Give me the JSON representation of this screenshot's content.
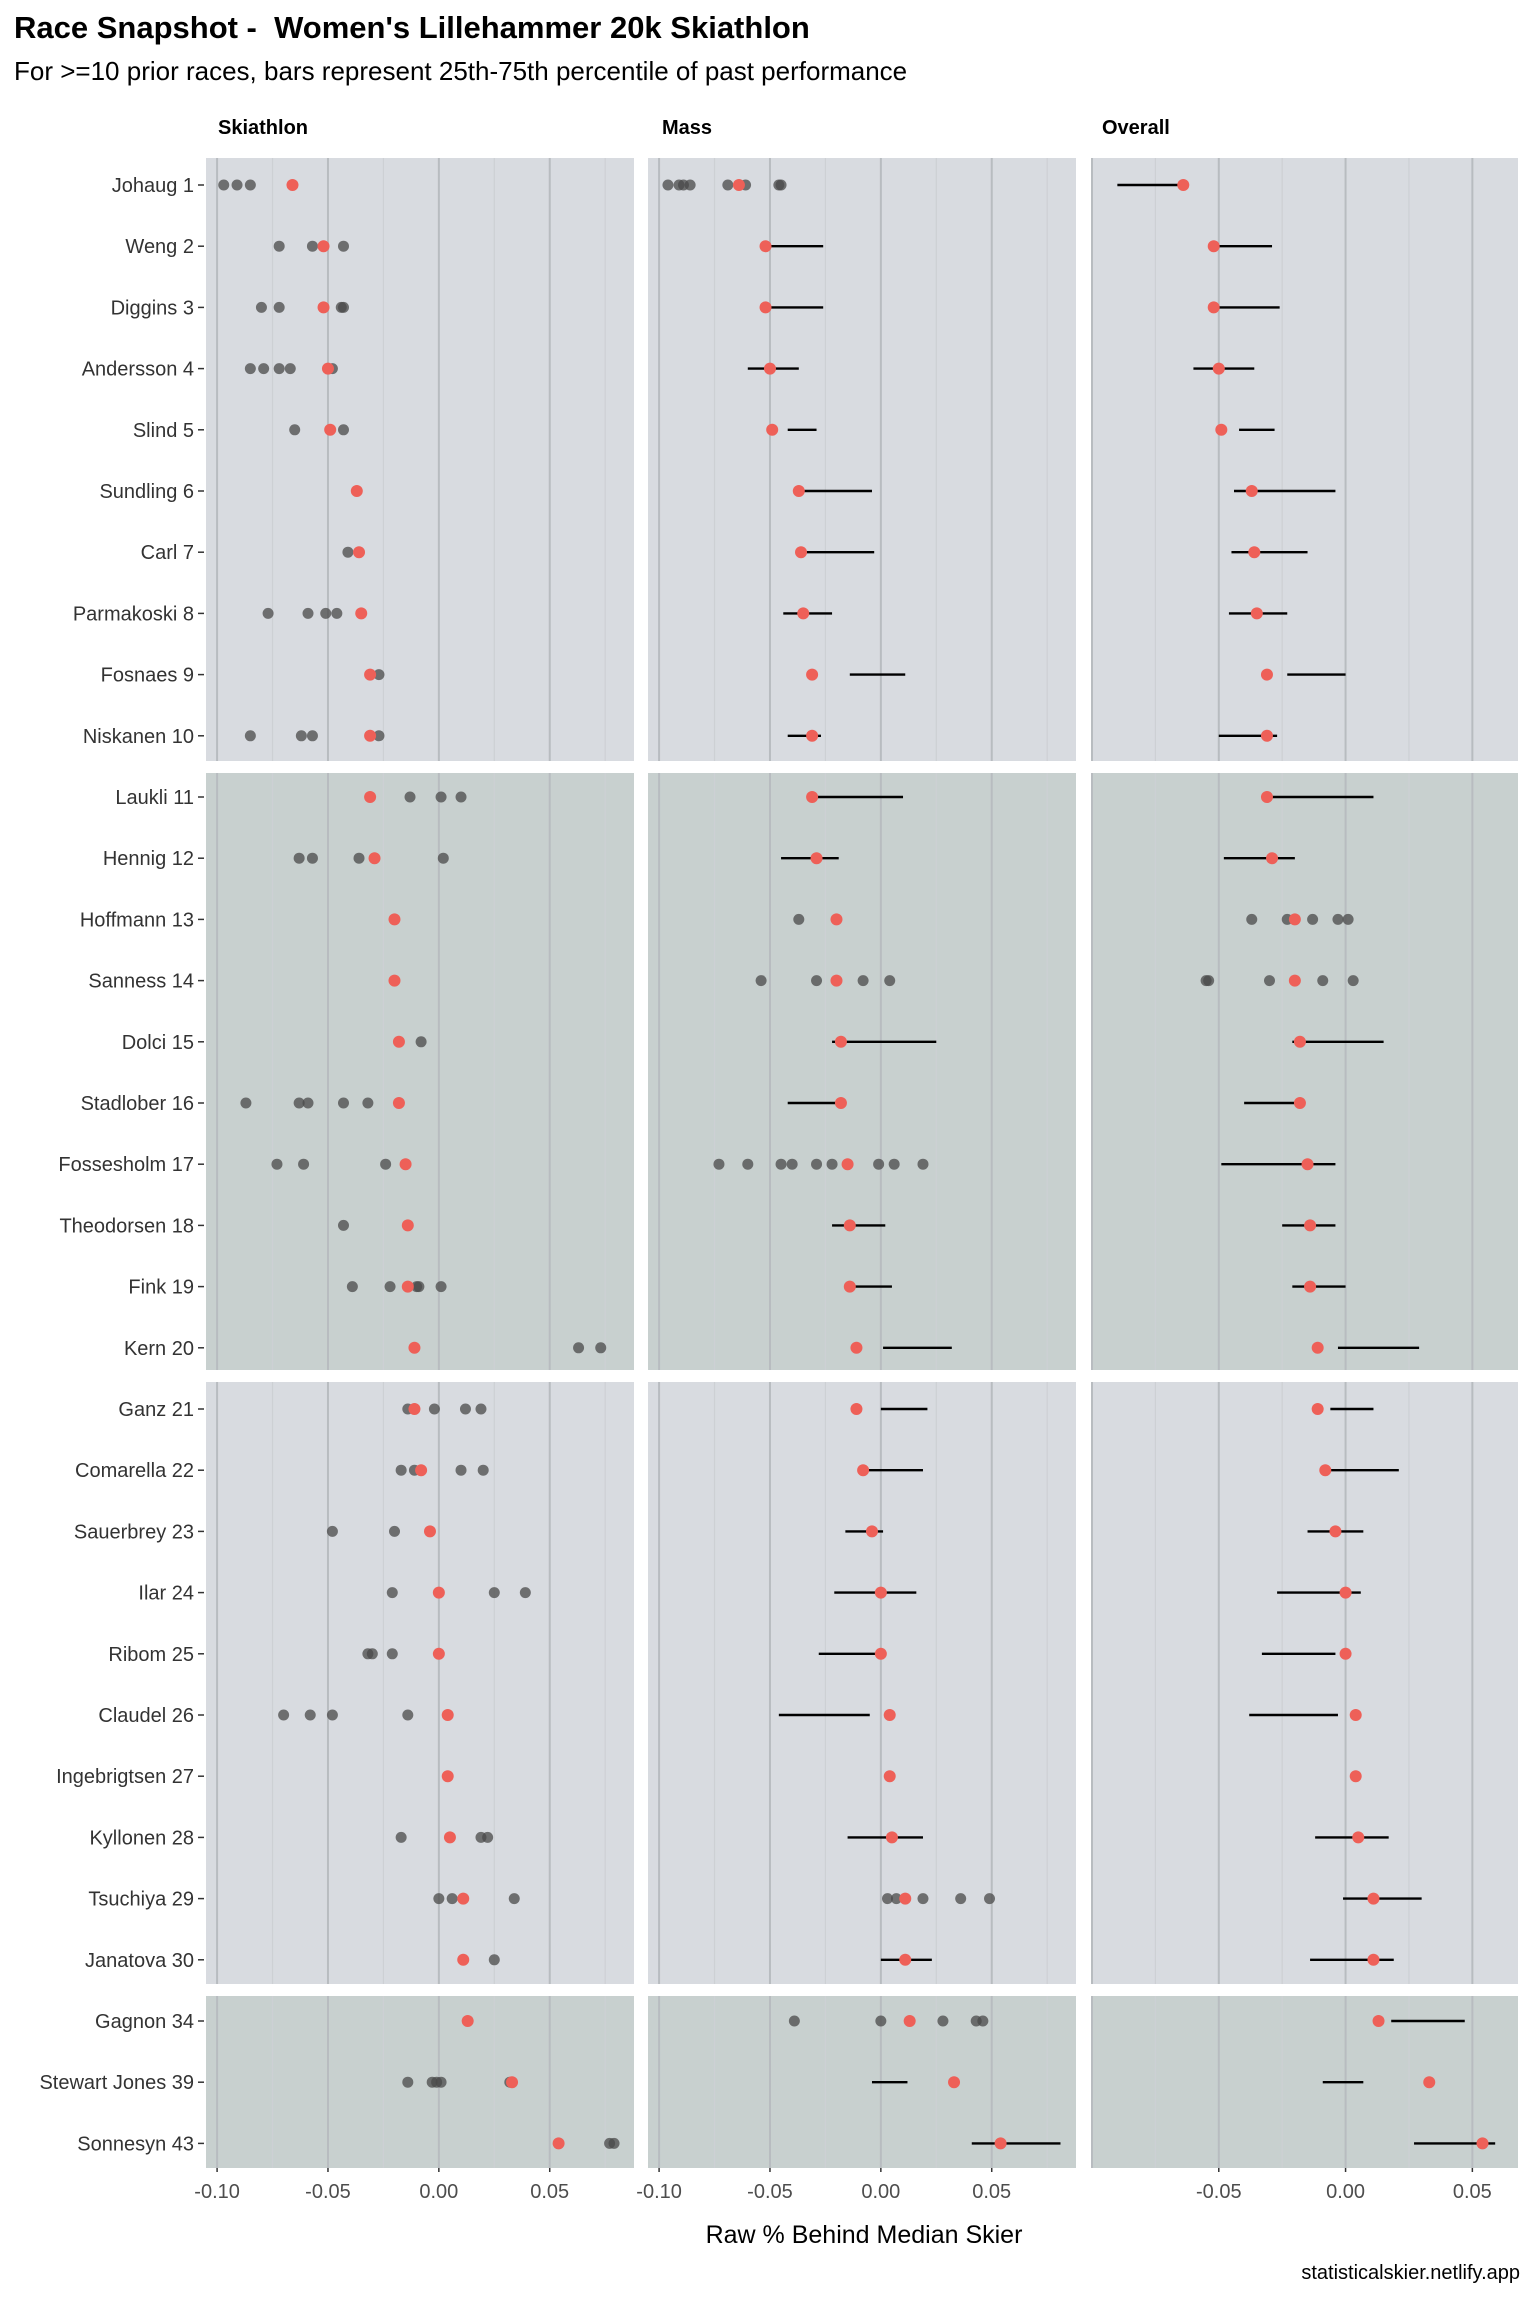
{
  "title": "Race Snapshot -  Women's Lillehammer 20k Skiathlon",
  "subtitle": "For >=10 prior races, bars represent 25th-75th percentile of past performance",
  "caption": "statisticalskier.netlify.app",
  "colors": {
    "panel_light": "#d8dbe0",
    "panel_dark": "#c8d0cf",
    "gridline": "#bfc3c7",
    "point": "#4a4a4a",
    "highlight": "#ee6058",
    "bar": "#000000",
    "text": "#333333"
  },
  "chart_data": {
    "type": "scatter",
    "xlabel": "Raw % Behind Median Skier",
    "facets": [
      {
        "name": "Skiathlon",
        "xlim": [
          -0.105,
          0.088
        ],
        "ticks": [
          -0.1,
          -0.05,
          0.0,
          0.05
        ],
        "tick_labels": [
          "-0.10",
          "-0.05",
          "0.00",
          "0.05"
        ]
      },
      {
        "name": "Mass",
        "xlim": [
          -0.105,
          0.088
        ],
        "ticks": [
          -0.1,
          -0.05,
          0.0,
          0.05
        ],
        "tick_labels": [
          "-0.10",
          "-0.05",
          "0.00",
          "0.05"
        ]
      },
      {
        "name": "Overall",
        "xlim": [
          -0.1,
          0.068
        ],
        "ticks": [
          -0.05,
          0.0,
          0.05
        ],
        "tick_labels": [
          "-0.05",
          "0.00",
          "0.05"
        ]
      }
    ],
    "groups": [
      [
        0,
        9
      ],
      [
        10,
        19
      ],
      [
        20,
        29
      ],
      [
        30,
        32
      ]
    ],
    "skiers": [
      {
        "label": "Johaug 1",
        "current": [
          -0.066,
          -0.064,
          -0.064
        ],
        "skiathlon": {
          "points": [
            -0.097,
            -0.091,
            -0.085
          ]
        },
        "mass": {
          "points": [
            -0.096,
            -0.091,
            -0.089,
            -0.086,
            -0.069,
            -0.061,
            -0.046,
            -0.045
          ]
        },
        "overall": {
          "range": [
            -0.09,
            -0.066
          ]
        }
      },
      {
        "label": "Weng 2",
        "current": [
          -0.052,
          -0.052,
          -0.052
        ],
        "skiathlon": {
          "points": [
            -0.072,
            -0.057,
            -0.043
          ]
        },
        "mass": {
          "range": [
            -0.052,
            -0.026
          ]
        },
        "overall": {
          "range": [
            -0.052,
            -0.029
          ]
        }
      },
      {
        "label": "Diggins 3",
        "current": [
          -0.052,
          -0.052,
          -0.052
        ],
        "skiathlon": {
          "points": [
            -0.08,
            -0.072,
            -0.044,
            -0.043
          ]
        },
        "mass": {
          "range": [
            -0.052,
            -0.026
          ]
        },
        "overall": {
          "range": [
            -0.052,
            -0.026
          ]
        }
      },
      {
        "label": "Andersson 4",
        "current": [
          -0.05,
          -0.05,
          -0.05
        ],
        "skiathlon": {
          "points": [
            -0.085,
            -0.079,
            -0.072,
            -0.067,
            -0.048
          ]
        },
        "mass": {
          "range": [
            -0.06,
            -0.037
          ]
        },
        "overall": {
          "range": [
            -0.06,
            -0.036
          ]
        }
      },
      {
        "label": "Slind 5",
        "current": [
          -0.049,
          -0.049,
          -0.049
        ],
        "skiathlon": {
          "points": [
            -0.065,
            -0.043
          ]
        },
        "mass": {
          "range": [
            -0.042,
            -0.029
          ]
        },
        "overall": {
          "range": [
            -0.042,
            -0.028
          ]
        }
      },
      {
        "label": "Sundling 6",
        "current": [
          -0.037,
          -0.037,
          -0.037
        ],
        "skiathlon": {
          "points": []
        },
        "mass": {
          "range": [
            -0.037,
            -0.004
          ]
        },
        "overall": {
          "range": [
            -0.044,
            -0.004
          ]
        }
      },
      {
        "label": "Carl 7",
        "current": [
          -0.036,
          -0.036,
          -0.036
        ],
        "skiathlon": {
          "points": [
            -0.041
          ]
        },
        "mass": {
          "range": [
            -0.036,
            -0.003
          ]
        },
        "overall": {
          "range": [
            -0.045,
            -0.015
          ]
        }
      },
      {
        "label": "Parmakoski 8",
        "current": [
          -0.035,
          -0.035,
          -0.035
        ],
        "skiathlon": {
          "points": [
            -0.077,
            -0.059,
            -0.051,
            -0.046
          ]
        },
        "mass": {
          "range": [
            -0.044,
            -0.022
          ]
        },
        "overall": {
          "range": [
            -0.046,
            -0.023
          ]
        }
      },
      {
        "label": "Fosnaes 9",
        "current": [
          -0.031,
          -0.031,
          -0.031
        ],
        "skiathlon": {
          "points": [
            -0.027
          ]
        },
        "mass": {
          "range": [
            -0.014,
            0.011
          ]
        },
        "overall": {
          "range": [
            -0.023,
            0.0
          ]
        }
      },
      {
        "label": "Niskanen 10",
        "current": [
          -0.031,
          -0.031,
          -0.031
        ],
        "skiathlon": {
          "points": [
            -0.085,
            -0.062,
            -0.057,
            -0.027
          ]
        },
        "mass": {
          "range": [
            -0.042,
            -0.027
          ]
        },
        "overall": {
          "range": [
            -0.05,
            -0.027
          ]
        }
      },
      {
        "label": "Laukli 11",
        "current": [
          -0.031,
          -0.031,
          -0.031
        ],
        "skiathlon": {
          "points": [
            -0.013,
            0.001,
            0.01
          ]
        },
        "mass": {
          "range": [
            -0.031,
            0.01
          ]
        },
        "overall": {
          "range": [
            -0.031,
            0.011
          ]
        }
      },
      {
        "label": "Hennig 12",
        "current": [
          -0.029,
          -0.029,
          -0.029
        ],
        "skiathlon": {
          "points": [
            -0.063,
            -0.057,
            -0.036,
            0.002
          ]
        },
        "mass": {
          "range": [
            -0.045,
            -0.019
          ]
        },
        "overall": {
          "range": [
            -0.048,
            -0.02
          ]
        }
      },
      {
        "label": "Hoffmann 13",
        "current": [
          -0.02,
          -0.02,
          -0.02
        ],
        "skiathlon": {
          "points": []
        },
        "mass": {
          "points": [
            -0.037
          ]
        },
        "overall": {
          "points": [
            -0.037,
            -0.023,
            -0.013,
            -0.003,
            0.001
          ]
        }
      },
      {
        "label": "Sanness 14",
        "current": [
          -0.02,
          -0.02,
          -0.02
        ],
        "skiathlon": {
          "points": []
        },
        "mass": {
          "points": [
            -0.054,
            -0.029,
            -0.008,
            0.004
          ]
        },
        "overall": {
          "points": [
            -0.055,
            -0.054,
            -0.03,
            -0.009,
            0.003
          ]
        }
      },
      {
        "label": "Dolci 15",
        "current": [
          -0.018,
          -0.018,
          -0.018
        ],
        "skiathlon": {
          "points": [
            -0.008
          ]
        },
        "mass": {
          "range": [
            -0.022,
            0.025
          ]
        },
        "overall": {
          "range": [
            -0.021,
            0.015
          ]
        }
      },
      {
        "label": "Stadlober 16",
        "current": [
          -0.018,
          -0.018,
          -0.018
        ],
        "skiathlon": {
          "points": [
            -0.087,
            -0.063,
            -0.059,
            -0.043,
            -0.032
          ]
        },
        "mass": {
          "range": [
            -0.042,
            -0.018
          ]
        },
        "overall": {
          "range": [
            -0.04,
            -0.018
          ]
        }
      },
      {
        "label": "Fossesholm 17",
        "current": [
          -0.015,
          -0.015,
          -0.015
        ],
        "skiathlon": {
          "points": [
            -0.073,
            -0.061,
            -0.024
          ]
        },
        "mass": {
          "points": [
            -0.073,
            -0.06,
            -0.045,
            -0.04,
            -0.029,
            -0.022,
            -0.001,
            0.006,
            0.019
          ]
        },
        "overall": {
          "range": [
            -0.049,
            -0.004
          ]
        }
      },
      {
        "label": "Theodorsen 18",
        "current": [
          -0.014,
          -0.014,
          -0.014
        ],
        "skiathlon": {
          "points": [
            -0.043
          ]
        },
        "mass": {
          "range": [
            -0.022,
            0.002
          ]
        },
        "overall": {
          "range": [
            -0.025,
            -0.004
          ]
        }
      },
      {
        "label": "Fink 19",
        "current": [
          -0.014,
          -0.014,
          -0.014
        ],
        "skiathlon": {
          "points": [
            -0.039,
            -0.022,
            -0.01,
            -0.009,
            0.001
          ]
        },
        "mass": {
          "range": [
            -0.014,
            0.005
          ]
        },
        "overall": {
          "range": [
            -0.021,
            0.0
          ]
        }
      },
      {
        "label": "Kern 20",
        "current": [
          -0.011,
          -0.011,
          -0.011
        ],
        "skiathlon": {
          "points": [
            0.063,
            0.073
          ]
        },
        "mass": {
          "range": [
            0.001,
            0.032
          ]
        },
        "overall": {
          "range": [
            -0.003,
            0.029
          ]
        }
      },
      {
        "label": "Ganz 21",
        "current": [
          -0.011,
          -0.011,
          -0.011
        ],
        "skiathlon": {
          "points": [
            -0.014,
            -0.002,
            0.012,
            0.019
          ]
        },
        "mass": {
          "range": [
            0.0,
            0.021
          ]
        },
        "overall": {
          "range": [
            -0.006,
            0.011
          ]
        }
      },
      {
        "label": "Comarella 22",
        "current": [
          -0.008,
          -0.008,
          -0.008
        ],
        "skiathlon": {
          "points": [
            -0.017,
            -0.011,
            0.01,
            0.02
          ]
        },
        "mass": {
          "range": [
            -0.008,
            0.019
          ]
        },
        "overall": {
          "range": [
            -0.008,
            0.021
          ]
        }
      },
      {
        "label": "Sauerbrey 23",
        "current": [
          -0.004,
          -0.004,
          -0.004
        ],
        "skiathlon": {
          "points": [
            -0.048,
            -0.02
          ]
        },
        "mass": {
          "range": [
            -0.016,
            0.001
          ]
        },
        "overall": {
          "range": [
            -0.015,
            0.007
          ]
        }
      },
      {
        "label": "Ilar 24",
        "current": [
          0.0,
          0.0,
          0.0
        ],
        "skiathlon": {
          "points": [
            -0.021,
            0.025,
            0.039
          ]
        },
        "mass": {
          "range": [
            -0.021,
            0.016
          ]
        },
        "overall": {
          "range": [
            -0.027,
            0.006
          ]
        }
      },
      {
        "label": "Ribom 25",
        "current": [
          0.0,
          0.0,
          0.0
        ],
        "skiathlon": {
          "points": [
            -0.032,
            -0.03,
            -0.021
          ]
        },
        "mass": {
          "range": [
            -0.028,
            0.0
          ]
        },
        "overall": {
          "range": [
            -0.033,
            -0.004
          ]
        }
      },
      {
        "label": "Claudel 26",
        "current": [
          0.004,
          0.004,
          0.004
        ],
        "skiathlon": {
          "points": [
            -0.07,
            -0.058,
            -0.048,
            -0.014
          ]
        },
        "mass": {
          "range": [
            -0.046,
            -0.005
          ]
        },
        "overall": {
          "range": [
            -0.038,
            -0.003
          ]
        }
      },
      {
        "label": "Ingebrigtsen 27",
        "current": [
          0.004,
          0.004,
          0.004
        ],
        "skiathlon": {
          "points": []
        },
        "mass": {
          "points": []
        },
        "overall": {
          "points": []
        }
      },
      {
        "label": "Kyllonen 28",
        "current": [
          0.005,
          0.005,
          0.005
        ],
        "skiathlon": {
          "points": [
            -0.017,
            0.019,
            0.022
          ]
        },
        "mass": {
          "range": [
            -0.015,
            0.019
          ]
        },
        "overall": {
          "range": [
            -0.012,
            0.017
          ]
        }
      },
      {
        "label": "Tsuchiya 29",
        "current": [
          0.011,
          0.011,
          0.011
        ],
        "skiathlon": {
          "points": [
            0.0,
            0.006,
            0.034
          ]
        },
        "mass": {
          "points": [
            0.003,
            0.007,
            0.019,
            0.036,
            0.049
          ]
        },
        "overall": {
          "range": [
            -0.001,
            0.03
          ]
        }
      },
      {
        "label": "Janatova 30",
        "current": [
          0.011,
          0.011,
          0.011
        ],
        "skiathlon": {
          "points": [
            0.025
          ]
        },
        "mass": {
          "range": [
            0.0,
            0.023
          ]
        },
        "overall": {
          "range": [
            -0.014,
            0.019
          ]
        }
      },
      {
        "label": "Gagnon 34",
        "current": [
          0.013,
          0.013,
          0.013
        ],
        "skiathlon": {
          "points": []
        },
        "mass": {
          "points": [
            -0.039,
            0.0,
            0.028,
            0.043,
            0.046
          ]
        },
        "overall": {
          "range": [
            0.018,
            0.047
          ]
        }
      },
      {
        "label": "Stewart Jones 39",
        "current": [
          0.033,
          0.033,
          0.033
        ],
        "skiathlon": {
          "points": [
            -0.014,
            -0.003,
            -0.001,
            0.001,
            0.032
          ]
        },
        "mass": {
          "range": [
            -0.004,
            0.012
          ]
        },
        "overall": {
          "range": [
            -0.009,
            0.007
          ]
        }
      },
      {
        "label": "Sonnesyn 43",
        "current": [
          0.054,
          0.054,
          0.054
        ],
        "skiathlon": {
          "points": [
            0.077,
            0.079
          ]
        },
        "mass": {
          "range": [
            0.041,
            0.081
          ]
        },
        "overall": {
          "range": [
            0.027,
            0.059
          ]
        }
      }
    ]
  }
}
